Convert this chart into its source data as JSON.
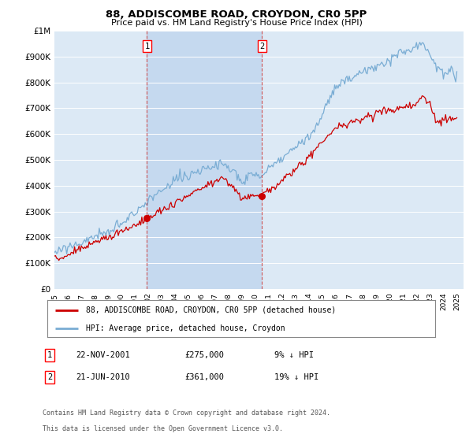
{
  "title": "88, ADDISCOMBE ROAD, CROYDON, CR0 5PP",
  "subtitle": "Price paid vs. HM Land Registry's House Price Index (HPI)",
  "ylim": [
    0,
    1000000
  ],
  "yticks": [
    0,
    100000,
    200000,
    300000,
    400000,
    500000,
    600000,
    700000,
    800000,
    900000,
    1000000
  ],
  "ytick_labels": [
    "£0",
    "£100K",
    "£200K",
    "£300K",
    "£400K",
    "£500K",
    "£600K",
    "£700K",
    "£800K",
    "£900K",
    "£1M"
  ],
  "xlim_start": 1995.0,
  "xlim_end": 2025.5,
  "background_color": "#dce9f5",
  "shade_color": "#c5d9ef",
  "grid_color": "#ffffff",
  "hpi_color": "#7aadd4",
  "price_color": "#cc0000",
  "transaction1_date": 2001.9,
  "transaction1_price": 275000,
  "transaction2_date": 2010.47,
  "transaction2_price": 361000,
  "legend_line1": "88, ADDISCOMBE ROAD, CROYDON, CR0 5PP (detached house)",
  "legend_line2": "HPI: Average price, detached house, Croydon",
  "footer1": "Contains HM Land Registry data © Crown copyright and database right 2024.",
  "footer2": "This data is licensed under the Open Government Licence v3.0.",
  "table_row1": [
    "1",
    "22-NOV-2001",
    "£275,000",
    "9% ↓ HPI"
  ],
  "table_row2": [
    "2",
    "21-JUN-2010",
    "£361,000",
    "19% ↓ HPI"
  ]
}
